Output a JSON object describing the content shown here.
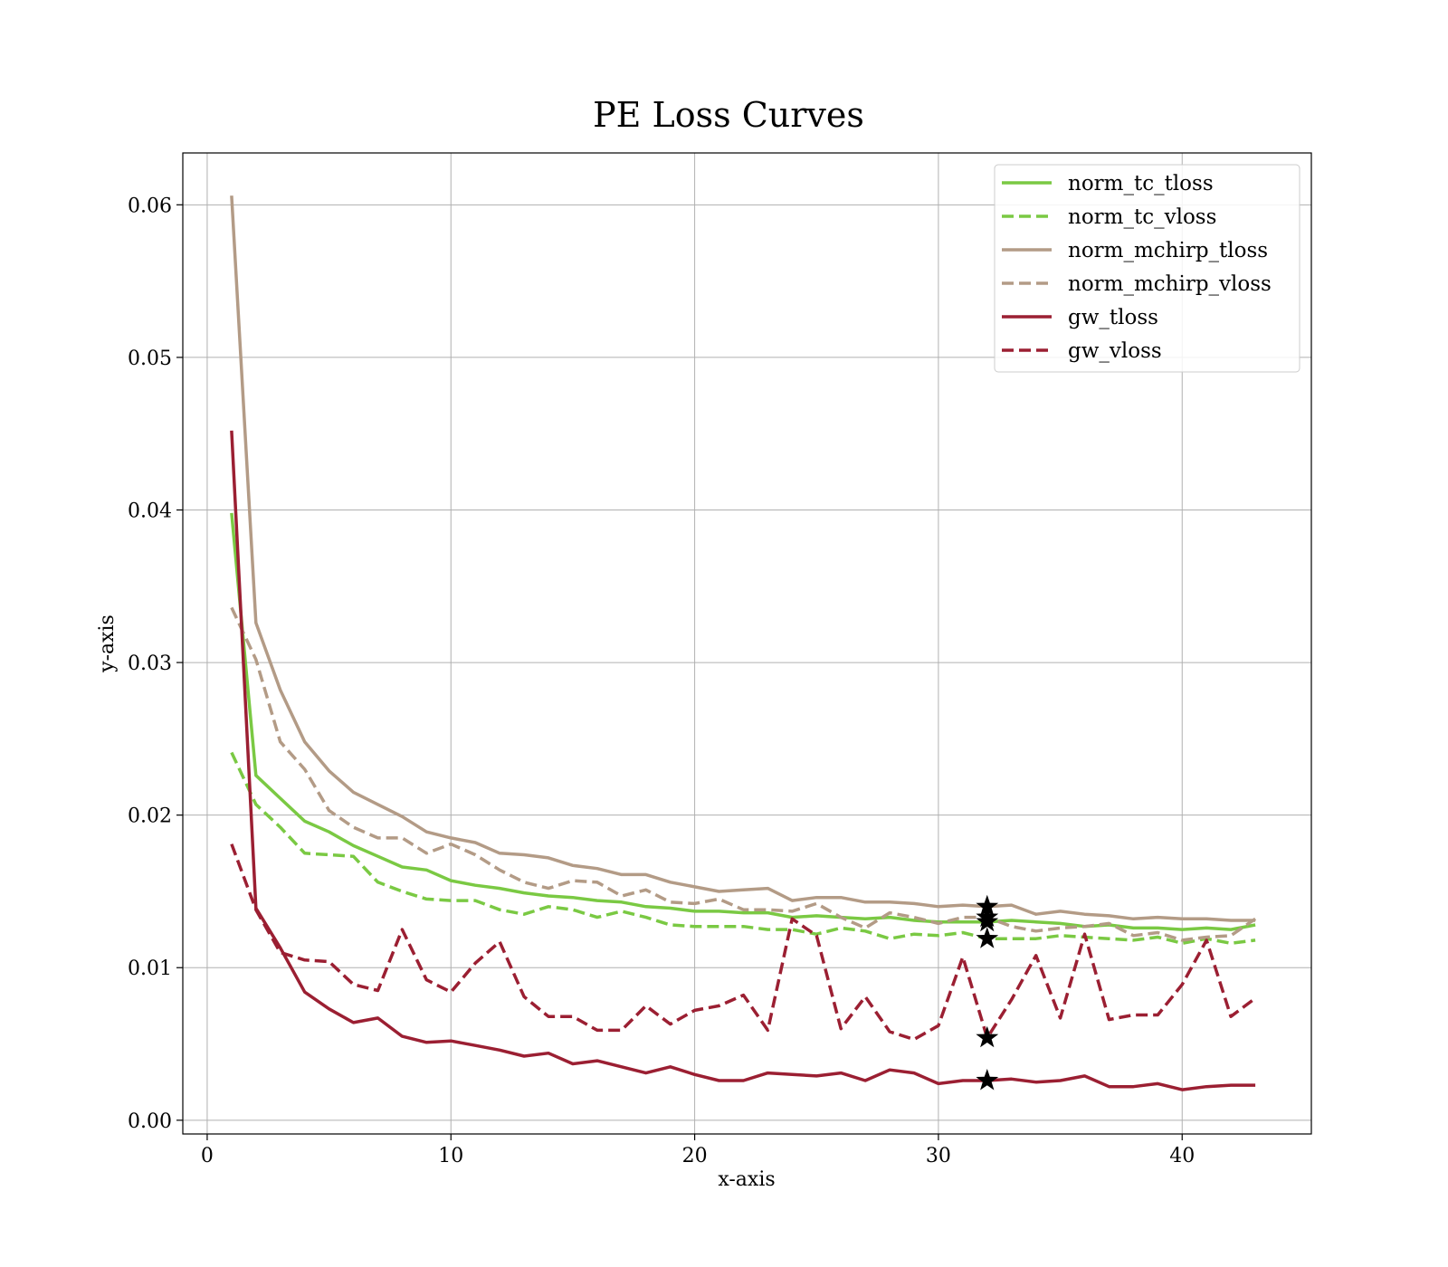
{
  "chart_data": {
    "type": "line",
    "title": "PE Loss Curves",
    "xlabel": "x-axis",
    "ylabel": "y-axis",
    "xlim": [
      -1,
      45.3
    ],
    "ylim": [
      -0.0009,
      0.0634
    ],
    "xticks": [
      0,
      10,
      20,
      30,
      40
    ],
    "xtick_labels": [
      "0",
      "10",
      "20",
      "30",
      "40"
    ],
    "yticks": [
      0.0,
      0.01,
      0.02,
      0.03,
      0.04,
      0.05,
      0.06
    ],
    "ytick_labels": [
      "0.00",
      "0.01",
      "0.02",
      "0.03",
      "0.04",
      "0.05",
      "0.06"
    ],
    "grid": true,
    "legend_position": "top-right",
    "x": [
      1,
      2,
      3,
      4,
      5,
      6,
      7,
      8,
      9,
      10,
      11,
      12,
      13,
      14,
      15,
      16,
      17,
      18,
      19,
      20,
      21,
      22,
      23,
      24,
      25,
      26,
      27,
      28,
      29,
      30,
      31,
      32,
      33,
      34,
      35,
      36,
      37,
      38,
      39,
      40,
      41,
      42,
      43
    ],
    "series": [
      {
        "name": "norm_tc_tloss",
        "color": "#7ac943",
        "dash": "solid",
        "values": [
          0.0398,
          0.0226,
          0.0211,
          0.0196,
          0.0189,
          0.018,
          0.0173,
          0.0166,
          0.0164,
          0.0157,
          0.0154,
          0.0152,
          0.0149,
          0.0147,
          0.0146,
          0.0144,
          0.0143,
          0.014,
          0.0139,
          0.0137,
          0.0137,
          0.0136,
          0.0136,
          0.0133,
          0.0134,
          0.0133,
          0.0132,
          0.0133,
          0.0131,
          0.013,
          0.013,
          0.013,
          0.0131,
          0.013,
          0.0129,
          0.0127,
          0.0128,
          0.0126,
          0.0126,
          0.0125,
          0.0126,
          0.0125,
          0.0128
        ]
      },
      {
        "name": "norm_tc_vloss",
        "color": "#7ac943",
        "dash": "dashed",
        "values": [
          0.0241,
          0.0207,
          0.0192,
          0.0175,
          0.0174,
          0.0173,
          0.0156,
          0.015,
          0.0145,
          0.0144,
          0.0144,
          0.0138,
          0.0135,
          0.014,
          0.0138,
          0.0133,
          0.0137,
          0.0133,
          0.0128,
          0.0127,
          0.0127,
          0.0127,
          0.0125,
          0.0125,
          0.0122,
          0.0126,
          0.0124,
          0.0119,
          0.0122,
          0.0121,
          0.0123,
          0.0119,
          0.0119,
          0.0119,
          0.0121,
          0.012,
          0.0119,
          0.0118,
          0.012,
          0.0116,
          0.0119,
          0.0116,
          0.0118
        ]
      },
      {
        "name": "norm_mchirp_tloss",
        "color": "#b39b86",
        "dash": "solid",
        "values": [
          0.0606,
          0.0326,
          0.0282,
          0.0248,
          0.0229,
          0.0215,
          0.0207,
          0.0199,
          0.0189,
          0.0185,
          0.0182,
          0.0175,
          0.0174,
          0.0172,
          0.0167,
          0.0165,
          0.0161,
          0.0161,
          0.0156,
          0.0153,
          0.015,
          0.0151,
          0.0152,
          0.0144,
          0.0146,
          0.0146,
          0.0143,
          0.0143,
          0.0142,
          0.014,
          0.0141,
          0.014,
          0.0141,
          0.0135,
          0.0137,
          0.0135,
          0.0134,
          0.0132,
          0.0133,
          0.0132,
          0.0132,
          0.0131,
          0.0131
        ]
      },
      {
        "name": "norm_mchirp_vloss",
        "color": "#b39b86",
        "dash": "dashed",
        "values": [
          0.0336,
          0.0302,
          0.0248,
          0.023,
          0.0203,
          0.0192,
          0.0185,
          0.0185,
          0.0175,
          0.0181,
          0.0174,
          0.0164,
          0.0156,
          0.0152,
          0.0157,
          0.0156,
          0.0147,
          0.0151,
          0.0143,
          0.0142,
          0.0145,
          0.0138,
          0.0138,
          0.0137,
          0.0142,
          0.0133,
          0.0126,
          0.0136,
          0.0133,
          0.0129,
          0.0133,
          0.0133,
          0.0127,
          0.0124,
          0.0126,
          0.0127,
          0.0129,
          0.0121,
          0.0123,
          0.0118,
          0.012,
          0.0121,
          0.0132
        ]
      },
      {
        "name": "gw_tloss",
        "color": "#9b1f32",
        "dash": "solid",
        "values": [
          0.0452,
          0.0139,
          0.0113,
          0.0084,
          0.0073,
          0.0064,
          0.0067,
          0.0055,
          0.0051,
          0.0052,
          0.0049,
          0.0046,
          0.0042,
          0.0044,
          0.0037,
          0.0039,
          0.0035,
          0.0031,
          0.0035,
          0.003,
          0.0026,
          0.0026,
          0.0031,
          0.003,
          0.0029,
          0.0031,
          0.0026,
          0.0033,
          0.0031,
          0.0024,
          0.0026,
          0.0026,
          0.0027,
          0.0025,
          0.0026,
          0.0029,
          0.0022,
          0.0022,
          0.0024,
          0.002,
          0.0022,
          0.0023,
          0.0023
        ]
      },
      {
        "name": "gw_vloss",
        "color": "#9b1f32",
        "dash": "dashed",
        "values": [
          0.0181,
          0.0138,
          0.011,
          0.0105,
          0.0104,
          0.0089,
          0.0085,
          0.0125,
          0.0092,
          0.0084,
          0.0103,
          0.0117,
          0.0081,
          0.0068,
          0.0068,
          0.0059,
          0.0059,
          0.0075,
          0.0063,
          0.0072,
          0.0075,
          0.0082,
          0.0059,
          0.0132,
          0.0121,
          0.006,
          0.0081,
          0.0058,
          0.0053,
          0.0062,
          0.0107,
          0.0054,
          0.0079,
          0.0108,
          0.0067,
          0.0122,
          0.0066,
          0.0069,
          0.0069,
          0.0089,
          0.0118,
          0.0068,
          0.008
        ]
      }
    ],
    "markers": {
      "symbol": "star",
      "color": "#000000",
      "x": 32,
      "y": [
        0.013,
        0.0119,
        0.014,
        0.0133,
        0.0026,
        0.0054
      ]
    }
  }
}
